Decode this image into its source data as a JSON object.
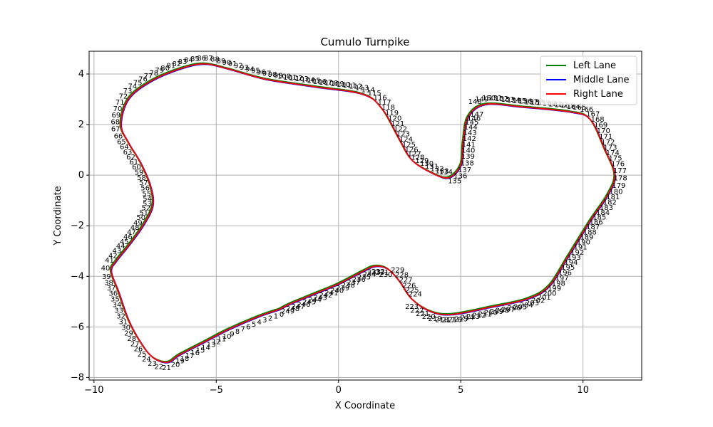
{
  "chart_data": {
    "type": "line",
    "title": "Cumulo Turnpike",
    "xlabel": "X Coordinate",
    "ylabel": "Y Coordinate",
    "xlim": [
      -10.2,
      12.4
    ],
    "ylim": [
      -8.1,
      4.9
    ],
    "xticks": [
      -10,
      -5,
      0,
      5,
      10
    ],
    "yticks": [
      -8,
      -6,
      -4,
      -2,
      0,
      2,
      4
    ],
    "grid": true,
    "legend_position": "top-right",
    "series": [
      {
        "name": "Left Lane",
        "color": "#008000"
      },
      {
        "name": "Middle Lane",
        "color": "#0000ff"
      },
      {
        "name": "Right Lane",
        "color": "#ff0000"
      }
    ],
    "track_points": [
      [
        -2.4,
        -5.3
      ],
      [
        -3.3,
        -5.6
      ],
      [
        -4.5,
        -6.1
      ],
      [
        -5.5,
        -6.6
      ],
      [
        -6.5,
        -7.1
      ],
      [
        -7.0,
        -7.4
      ],
      [
        -7.6,
        -7.2
      ],
      [
        -8.1,
        -6.6
      ],
      [
        -8.6,
        -5.7
      ],
      [
        -9.0,
        -4.6
      ],
      [
        -9.3,
        -3.8
      ],
      [
        -9.1,
        -3.4
      ],
      [
        -8.6,
        -2.8
      ],
      [
        -8.0,
        -2.0
      ],
      [
        -7.6,
        -1.2
      ],
      [
        -7.7,
        -0.4
      ],
      [
        -8.1,
        0.5
      ],
      [
        -8.6,
        1.3
      ],
      [
        -8.9,
        2.0
      ],
      [
        -8.6,
        3.0
      ],
      [
        -7.7,
        3.7
      ],
      [
        -6.5,
        4.2
      ],
      [
        -5.5,
        4.4
      ],
      [
        -4.5,
        4.2
      ],
      [
        -3.0,
        3.8
      ],
      [
        -1.0,
        3.5
      ],
      [
        1.0,
        3.2
      ],
      [
        1.8,
        2.6
      ],
      [
        2.5,
        1.4
      ],
      [
        3.0,
        0.6
      ],
      [
        3.8,
        0.1
      ],
      [
        4.5,
        -0.1
      ],
      [
        5.0,
        0.4
      ],
      [
        5.1,
        1.3
      ],
      [
        5.3,
        2.3
      ],
      [
        6.0,
        2.8
      ],
      [
        7.5,
        2.7
      ],
      [
        9.5,
        2.5
      ],
      [
        10.3,
        2.2
      ],
      [
        10.9,
        1.0
      ],
      [
        11.3,
        0.0
      ],
      [
        11.0,
        -0.8
      ],
      [
        10.3,
        -1.8
      ],
      [
        9.4,
        -3.2
      ],
      [
        8.6,
        -4.4
      ],
      [
        7.7,
        -4.9
      ],
      [
        6.3,
        -5.2
      ],
      [
        4.7,
        -5.5
      ],
      [
        3.8,
        -5.4
      ],
      [
        3.0,
        -4.9
      ],
      [
        2.5,
        -4.2
      ],
      [
        2.0,
        -3.7
      ],
      [
        1.5,
        -3.6
      ],
      [
        1.0,
        -3.8
      ],
      [
        0.0,
        -4.3
      ],
      [
        -1.0,
        -4.7
      ],
      [
        -2.0,
        -5.1
      ],
      [
        -2.4,
        -5.3
      ]
    ]
  }
}
